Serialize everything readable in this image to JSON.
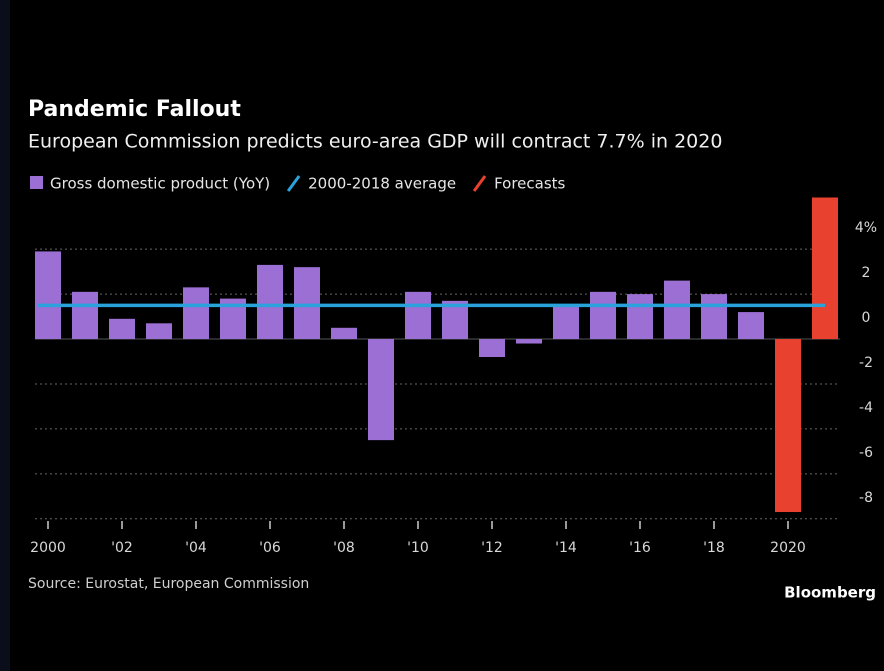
{
  "chart_data": {
    "type": "bar",
    "title": "Pandemic Fallout",
    "subtitle": "European Commission predicts euro-area GDP will contract 7.7% in 2020",
    "source": "Source: Eurostat, European Commission",
    "credit": "Bloomberg",
    "categories": [
      "2000",
      null,
      "'02",
      null,
      "'04",
      null,
      "'06",
      null,
      "'08",
      null,
      "'10",
      null,
      "'12",
      null,
      "'14",
      null,
      "'16",
      null,
      "'18",
      null,
      "2020",
      null
    ],
    "series": [
      {
        "name": "Gross domestic product (YoY)",
        "color": "#9b6fd3",
        "values": [
          3.9,
          2.1,
          0.9,
          0.7,
          2.3,
          1.8,
          3.3,
          3.2,
          0.5,
          -4.5,
          2.1,
          1.7,
          -0.8,
          -0.2,
          1.5,
          2.1,
          2.0,
          2.6,
          2.0,
          1.2,
          null,
          null
        ]
      },
      {
        "name": "2000-2018 average",
        "color": "#2aa3dc",
        "value": 1.5
      },
      {
        "name": "Forecasts",
        "color": "#e8412f",
        "values": [
          null,
          null,
          null,
          null,
          null,
          null,
          null,
          null,
          null,
          null,
          null,
          null,
          null,
          null,
          null,
          null,
          null,
          null,
          null,
          null,
          -7.7,
          6.3
        ]
      }
    ],
    "ylim": [
      -8.5,
      6.5
    ],
    "yticks": [
      -8,
      -6,
      -4,
      -2,
      0,
      2,
      {
        "value": 4,
        "label": "4%"
      }
    ],
    "grid": true
  }
}
